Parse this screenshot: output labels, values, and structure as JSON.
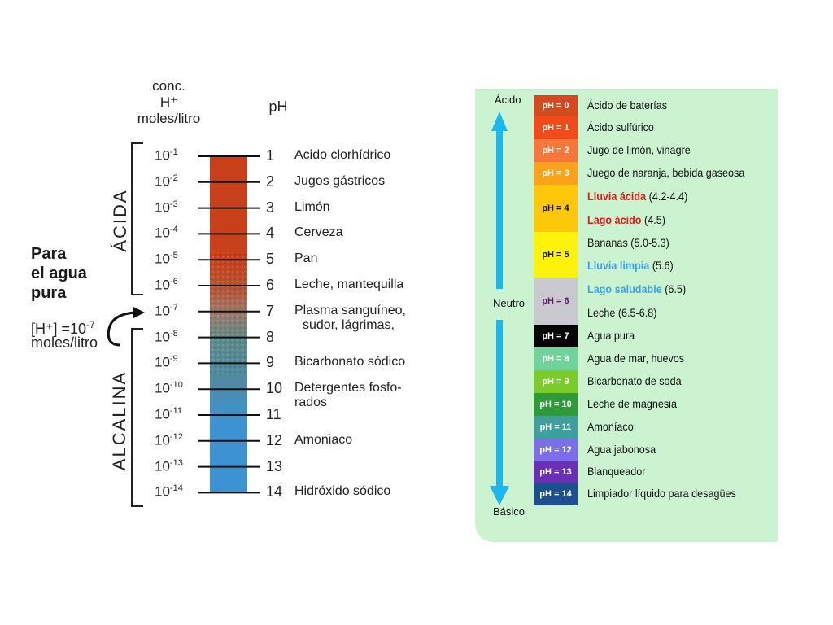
{
  "left_chart": {
    "header_conc": [
      "conc.",
      "H⁺",
      "moles/litro"
    ],
    "header_ph": "pH",
    "region_acid": "ÁCIDA",
    "region_alk": "ALCALINA",
    "pure_water_title": [
      "Para",
      "el agua",
      "pura"
    ],
    "pure_water_conc": "[H⁺] =10",
    "pure_water_exp": "-7",
    "pure_water_units": "moles/litro",
    "colors": {
      "acid": "#c8401a",
      "mid": "#9c7a6e",
      "neutral_teal": "#5a8a8c",
      "base": "#3d93d2"
    },
    "rows": [
      {
        "conc": "10",
        "exp": "-1",
        "ph": "1",
        "label": "Acido clorhídrico"
      },
      {
        "conc": "10",
        "exp": "-2",
        "ph": "2",
        "label": "Jugos gástricos"
      },
      {
        "conc": "10",
        "exp": "-3",
        "ph": "3",
        "label": "Limón"
      },
      {
        "conc": "10",
        "exp": "-4",
        "ph": "4",
        "label": "Cerveza"
      },
      {
        "conc": "10",
        "exp": "-5",
        "ph": "5",
        "label": "Pan"
      },
      {
        "conc": "10",
        "exp": "-6",
        "ph": "6",
        "label": "Leche, mantequilla"
      },
      {
        "conc": "10",
        "exp": "-7",
        "ph": "7",
        "label": "Plasma sanguíneo,",
        "label2": "sudor, lágrimas,"
      },
      {
        "conc": "10",
        "exp": "-8",
        "ph": "8",
        "label": ""
      },
      {
        "conc": "10",
        "exp": "-9",
        "ph": "9",
        "label": "Bicarbonato sódico"
      },
      {
        "conc": "10",
        "exp": "-10",
        "ph": "10",
        "label": "Detergentes fosfo-",
        "label2": "rados"
      },
      {
        "conc": "10",
        "exp": "-11",
        "ph": "11",
        "label": ""
      },
      {
        "conc": "10",
        "exp": "-12",
        "ph": "12",
        "label": "Amoniaco"
      },
      {
        "conc": "10",
        "exp": "-13",
        "ph": "13",
        "label": ""
      },
      {
        "conc": "10",
        "exp": "-14",
        "ph": "14",
        "label": "Hidróxido sódico"
      }
    ]
  },
  "right_chart": {
    "top_label": "Ácido",
    "mid_label": "Neutro",
    "bottom_label": "Básico",
    "arrow_color": "#1ab8ee",
    "panel_color": "#cbf3cf",
    "rows": [
      {
        "ph": "pH = 0",
        "color": "#d24a1e",
        "text_color": "#ffffff",
        "items": [
          {
            "text": "Ácido de baterías"
          }
        ]
      },
      {
        "ph": "pH = 1",
        "color": "#f04b18",
        "text_color": "#ffffff",
        "items": [
          {
            "text": "Ácido sulfúrico"
          }
        ]
      },
      {
        "ph": "pH = 2",
        "color": "#f7763a",
        "text_color": "#ffffff",
        "items": [
          {
            "text": "Jugo de limón, vinagre"
          }
        ]
      },
      {
        "ph": "pH = 3",
        "color": "#f9a21a",
        "text_color": "#ffffff",
        "items": [
          {
            "text": "Juego de naranja, bebida gaseosa"
          }
        ]
      },
      {
        "ph": "pH = 4",
        "color": "#fdc70a",
        "text_color": "#111111",
        "items": [
          {
            "text": "Lluvia ácida",
            "extra": " (4.2-4.4)",
            "color": "#e01919"
          },
          {
            "text": "Lago ácido",
            "extra": " (4.5)",
            "color": "#e01919"
          }
        ]
      },
      {
        "ph": "pH = 5",
        "color": "#fdf20b",
        "text_color": "#111111",
        "items": [
          {
            "text": "Bananas (5.0-5.3)"
          },
          {
            "text": "Lluvia limpia",
            "extra": " (5.6)",
            "color": "#3aa3ef"
          }
        ]
      },
      {
        "ph": "pH = 6",
        "color": "#c9c9cf",
        "text_color": "#5a1a6a",
        "items": [
          {
            "text": "Lago saludable",
            "extra": " (6.5)",
            "color": "#3aa3ef"
          },
          {
            "text": "Leche (6.5-6.8)"
          }
        ]
      },
      {
        "ph": "pH = 7",
        "color": "#050505",
        "text_color": "#ffffff",
        "items": [
          {
            "text": "Agua pura"
          }
        ]
      },
      {
        "ph": "pH = 8",
        "color": "#6fd39b",
        "text_color": "#ffffff",
        "items": [
          {
            "text": "Agua de mar, huevos"
          }
        ]
      },
      {
        "ph": "pH = 9",
        "color": "#7acc2a",
        "text_color": "#ffffff",
        "items": [
          {
            "text": "Bicarbonato de soda"
          }
        ]
      },
      {
        "ph": "pH = 10",
        "color": "#2e9a3a",
        "text_color": "#ffffff",
        "items": [
          {
            "text": "Leche de magnesia"
          }
        ]
      },
      {
        "ph": "pH = 11",
        "color": "#3f9e9e",
        "text_color": "#ffffff",
        "items": [
          {
            "text": "Amoníaco"
          }
        ]
      },
      {
        "ph": "pH = 12",
        "color": "#7b6ee8",
        "text_color": "#ffffff",
        "items": [
          {
            "text": "Agua jabonosa"
          }
        ]
      },
      {
        "ph": "pH = 13",
        "color": "#6a2eb8",
        "text_color": "#ffffff",
        "items": [
          {
            "text": "Blanqueador"
          }
        ]
      },
      {
        "ph": "pH = 14",
        "color": "#1d4f8e",
        "text_color": "#ffffff",
        "items": [
          {
            "text": "Limpiador líquido para desagües"
          }
        ]
      }
    ]
  }
}
